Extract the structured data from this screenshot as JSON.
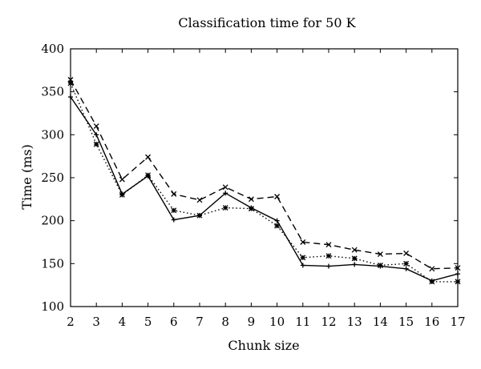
{
  "chart_data": {
    "type": "line",
    "title": "Classification time for 50 K",
    "xlabel": "Chunk size",
    "ylabel": "Time (ms)",
    "xlim": [
      2,
      17
    ],
    "ylim": [
      100,
      400
    ],
    "x": [
      2,
      3,
      4,
      5,
      6,
      7,
      8,
      9,
      10,
      11,
      12,
      13,
      14,
      15,
      16,
      17
    ],
    "xticks": [
      "2",
      "3",
      "4",
      "5",
      "6",
      "7",
      "8",
      "9",
      "10",
      "11",
      "12",
      "13",
      "14",
      "15",
      "16",
      "17"
    ],
    "yticks": [
      "100",
      "150",
      "200",
      "250",
      "300",
      "350",
      "400"
    ],
    "grid": false,
    "series": [
      {
        "line": "dashed",
        "marker": "x",
        "values": [
          364,
          310,
          248,
          274,
          231,
          224,
          239,
          225,
          228,
          175,
          172,
          166,
          161,
          162,
          144,
          145
        ]
      },
      {
        "line": "dotted",
        "marker": "asterisk",
        "values": [
          360,
          289,
          230,
          253,
          212,
          206,
          215,
          214,
          194,
          157,
          159,
          156,
          148,
          150,
          129,
          129
        ]
      },
      {
        "line": "solid",
        "marker": "plus",
        "values": [
          344,
          300,
          231,
          252,
          201,
          206,
          232,
          215,
          200,
          148,
          147,
          149,
          147,
          144,
          130,
          138
        ]
      }
    ]
  }
}
